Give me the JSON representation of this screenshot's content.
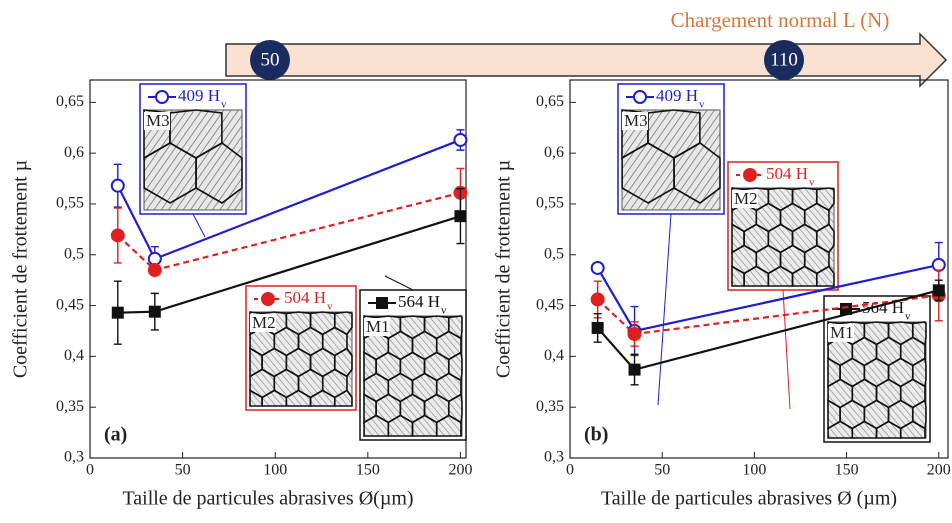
{
  "banner": {
    "title": "Chargement normal L (N)",
    "markers": [
      50,
      110
    ]
  },
  "chart_data": [
    {
      "type": "line",
      "panel": "(a)",
      "xlabel": "Taille de particules abrasives Ø(µm)",
      "ylabel": "Coefficient de frottement µ",
      "x": [
        15,
        35,
        200
      ],
      "xlim": [
        0,
        203
      ],
      "xticks": [
        0,
        50,
        100,
        150,
        200
      ],
      "ylim": [
        0.3,
        0.672
      ],
      "yticks": [
        {
          "value": 0.3,
          "label": "0,3"
        },
        {
          "value": 0.35,
          "label": "0,35"
        },
        {
          "value": 0.4,
          "label": "0,4"
        },
        {
          "value": 0.45,
          "label": "0,45"
        },
        {
          "value": 0.5,
          "label": "0,5"
        },
        {
          "value": 0.55,
          "label": "0,55"
        },
        {
          "value": 0.6,
          "label": "0,6"
        },
        {
          "value": 0.65,
          "label": "0,65"
        }
      ],
      "series": [
        {
          "name": "409 H",
          "sub": "v",
          "inset": "M3",
          "color": "#1f1fd0",
          "marker": "open-circle",
          "values": [
            0.568,
            0.496,
            0.613
          ],
          "errors": [
            0.021,
            0.012,
            0.01
          ]
        },
        {
          "name": "504 H",
          "sub": "v",
          "inset": "M2",
          "color": "#e02020",
          "marker": "circle",
          "dashed": true,
          "values": [
            0.519,
            0.485,
            0.561
          ],
          "errors": [
            0.027,
            0.005,
            0.024
          ]
        },
        {
          "name": "564 H",
          "sub": "v",
          "inset": "M1",
          "color": "#111111",
          "marker": "square",
          "values": [
            0.443,
            0.444,
            0.538
          ],
          "errors": [
            0.031,
            0.018,
            0.027
          ]
        }
      ]
    },
    {
      "type": "line",
      "panel": "(b)",
      "xlabel": "Taille de particules abrasives Ø (µm)",
      "ylabel": "Coefficient de frottement µ",
      "x": [
        15,
        35,
        200
      ],
      "xlim": [
        0,
        205
      ],
      "xticks": [
        0,
        50,
        100,
        150,
        200
      ],
      "ylim": [
        0.3,
        0.672
      ],
      "yticks": [
        {
          "value": 0.3,
          "label": "0,3"
        },
        {
          "value": 0.35,
          "label": "0,35"
        },
        {
          "value": 0.4,
          "label": "0,4"
        },
        {
          "value": 0.45,
          "label": "0,45"
        },
        {
          "value": 0.5,
          "label": "0,5"
        },
        {
          "value": 0.55,
          "label": "0,55"
        },
        {
          "value": 0.6,
          "label": "0,6"
        },
        {
          "value": 0.65,
          "label": "0,65"
        }
      ],
      "series": [
        {
          "name": "409 H",
          "sub": "v",
          "inset": "M3",
          "color": "#1f1fd0",
          "marker": "open-circle",
          "values": [
            0.487,
            0.425,
            0.49
          ],
          "errors": [
            0.005,
            0.024,
            0.022
          ]
        },
        {
          "name": "504 H",
          "sub": "v",
          "inset": "M2",
          "color": "#e02020",
          "marker": "circle",
          "dashed": true,
          "values": [
            0.456,
            0.422,
            0.46
          ],
          "errors": [
            0.018,
            0.012,
            0.025
          ]
        },
        {
          "name": "564 H",
          "sub": "v",
          "inset": "M1",
          "color": "#111111",
          "marker": "square",
          "values": [
            0.428,
            0.387,
            0.465
          ],
          "errors": [
            0.014,
            0.015,
            0.01
          ]
        }
      ]
    }
  ]
}
